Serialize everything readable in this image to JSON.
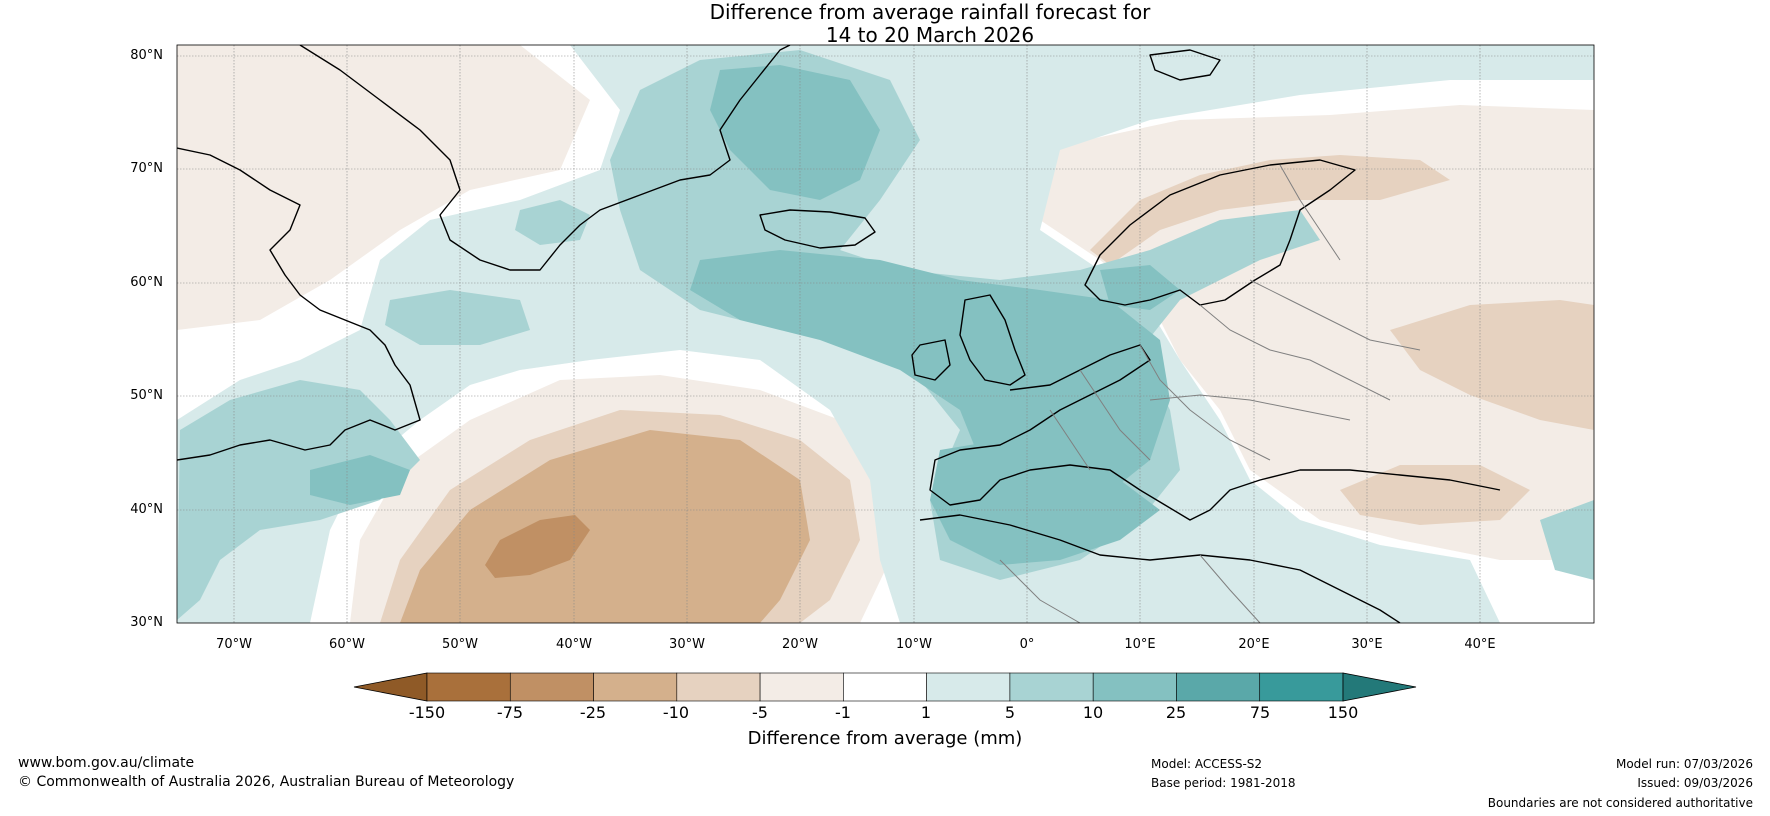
{
  "title": {
    "line1": "Difference from average rainfall forecast for",
    "line2": "14 to 20 March 2026"
  },
  "map": {
    "lat_labels": [
      "80°N",
      "70°N",
      "60°N",
      "50°N",
      "40°N",
      "30°N"
    ],
    "lon_labels": [
      "70°W",
      "60°W",
      "50°W",
      "40°W",
      "30°W",
      "20°W",
      "10°W",
      "0°",
      "10°E",
      "20°E",
      "30°E",
      "40°E"
    ],
    "lat_range": [
      30,
      81
    ],
    "lon_range": [
      -75,
      50
    ]
  },
  "colorbar": {
    "ticks": [
      "-150",
      "-75",
      "-25",
      "-10",
      "-5",
      "-1",
      "1",
      "5",
      "10",
      "25",
      "75",
      "150"
    ],
    "colors": [
      "#8f5a27",
      "#a9703b",
      "#c09064",
      "#d4b08c",
      "#e6d2c0",
      "#f3ece6",
      "#ffffff",
      "#d7eaea",
      "#a8d3d3",
      "#84c1c1",
      "#5aa8a9",
      "#389a9b",
      "#237979"
    ],
    "label": "Difference from average (mm)"
  },
  "palette": {
    "land_outline": "#000000",
    "border": "#808080",
    "grid": "#888888"
  },
  "footer": {
    "website": "www.bom.gov.au/climate",
    "copyright": "© Commonwealth of Australia 2026, Australian Bureau of Meteorology",
    "model": "Model: ACCESS-S2",
    "base_period": "Base period: 1981-2018",
    "model_run": "Model run: 07/03/2026",
    "issued": "Issued: 09/03/2026",
    "disclaimer": "Boundaries are not considered authoritative"
  }
}
